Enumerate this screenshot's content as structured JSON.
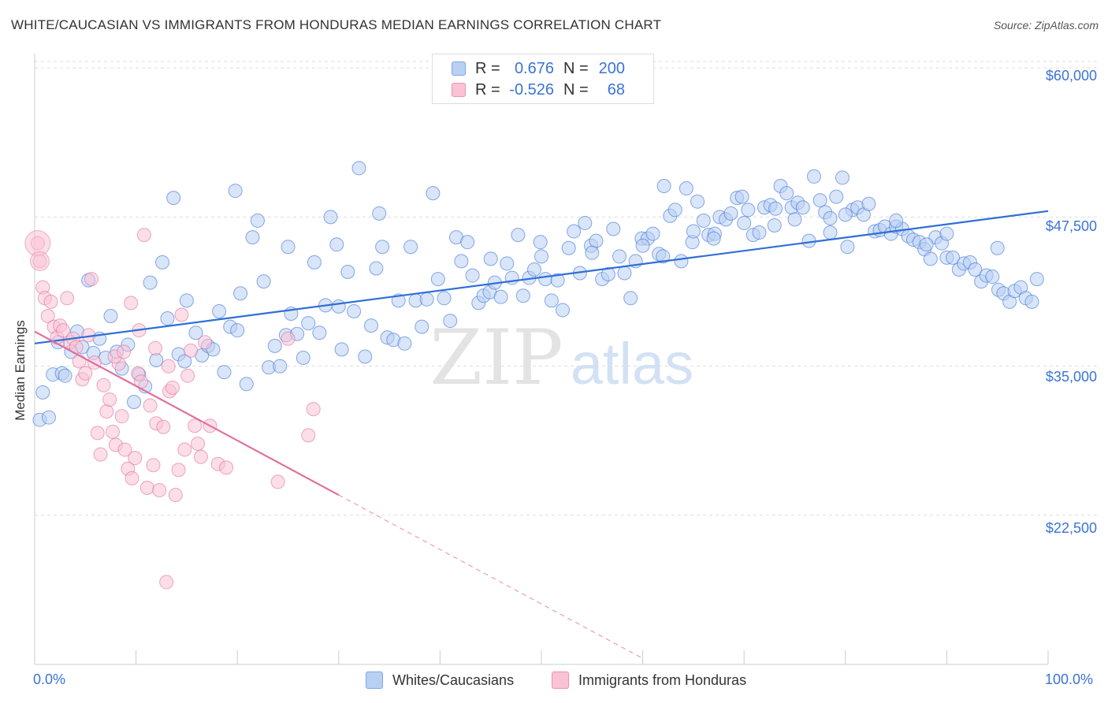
{
  "title": "WHITE/CAUCASIAN VS IMMIGRANTS FROM HONDURAS MEDIAN EARNINGS CORRELATION CHART",
  "source": "Source: ZipAtlas.com",
  "watermark": {
    "zip": "ZIP",
    "atlas": "atlas"
  },
  "legend": {
    "rows": [
      {
        "r_label": "R =",
        "r_value": "0.676",
        "n_label": "N =",
        "n_value": "200",
        "color": "#7aa7e8",
        "fill": "#b9d0f3"
      },
      {
        "r_label": "R =",
        "r_value": "-0.526",
        "n_label": "N =",
        "n_value": "68",
        "color": "#ee90b0",
        "fill": "#f9c3d5"
      }
    ]
  },
  "bottom_legend": {
    "series1": "Whites/Caucasians",
    "series2": "Immigrants from Honduras"
  },
  "chart_data": {
    "type": "scatter",
    "title": "WHITE/CAUCASIAN VS IMMIGRANTS FROM HONDURAS MEDIAN EARNINGS CORRELATION CHART",
    "xlabel": "",
    "ylabel": "Median Earnings",
    "x_tick_labels": [
      "0.0%",
      "100.0%"
    ],
    "y_tick_labels": [
      "$22,500",
      "$35,000",
      "$47,500",
      "$60,000"
    ],
    "y_tick_values": [
      22500,
      35000,
      47500,
      60000
    ],
    "xlim": [
      0,
      100
    ],
    "ylim": [
      10000,
      61200
    ],
    "grid": true,
    "legend_placement": "top-center",
    "series": [
      {
        "name": "Whites/Caucasians",
        "color": "#3a73d8",
        "fill": "#b9d0f3",
        "trend": {
          "x": [
            0,
            100
          ],
          "y": [
            36900,
            48000
          ]
        },
        "points": [
          [
            0.5,
            30500
          ],
          [
            0.8,
            32800
          ],
          [
            1.4,
            30700
          ],
          [
            1.8,
            34300
          ],
          [
            2.3,
            37000
          ],
          [
            2.7,
            34400
          ],
          [
            3.0,
            34200
          ],
          [
            3.6,
            36200
          ],
          [
            4.2,
            37900
          ],
          [
            4.7,
            36600
          ],
          [
            5.3,
            42200
          ],
          [
            5.8,
            36100
          ],
          [
            6.4,
            37300
          ],
          [
            7.0,
            35700
          ],
          [
            7.5,
            39200
          ],
          [
            8.1,
            36200
          ],
          [
            8.6,
            34800
          ],
          [
            9.2,
            36800
          ],
          [
            9.8,
            32000
          ],
          [
            10.3,
            34300
          ],
          [
            10.9,
            33300
          ],
          [
            11.4,
            42000
          ],
          [
            12.0,
            35500
          ],
          [
            12.6,
            43700
          ],
          [
            13.1,
            39000
          ],
          [
            13.7,
            49100
          ],
          [
            14.2,
            36000
          ],
          [
            14.8,
            35400
          ],
          [
            15.9,
            37800
          ],
          [
            16.5,
            35900
          ],
          [
            17.1,
            36700
          ],
          [
            17.6,
            36400
          ],
          [
            18.2,
            39600
          ],
          [
            18.7,
            34500
          ],
          [
            19.3,
            38300
          ],
          [
            19.8,
            49700
          ],
          [
            20.3,
            41100
          ],
          [
            20.9,
            33500
          ],
          [
            21.5,
            45800
          ],
          [
            22.0,
            47200
          ],
          [
            22.6,
            42100
          ],
          [
            23.1,
            34900
          ],
          [
            23.7,
            36700
          ],
          [
            24.2,
            35000
          ],
          [
            24.8,
            37600
          ],
          [
            25.3,
            39400
          ],
          [
            25.9,
            37700
          ],
          [
            26.5,
            35700
          ],
          [
            27.0,
            38600
          ],
          [
            27.6,
            43700
          ],
          [
            28.1,
            37800
          ],
          [
            28.7,
            40100
          ],
          [
            29.2,
            47500
          ],
          [
            29.8,
            45200
          ],
          [
            30.3,
            36400
          ],
          [
            30.9,
            42900
          ],
          [
            31.5,
            39600
          ],
          [
            32.0,
            51600
          ],
          [
            32.6,
            35800
          ],
          [
            33.2,
            38400
          ],
          [
            33.7,
            43200
          ],
          [
            34.3,
            45000
          ],
          [
            34.8,
            37400
          ],
          [
            35.4,
            37200
          ],
          [
            35.9,
            40500
          ],
          [
            36.5,
            36900
          ],
          [
            37.1,
            45000
          ],
          [
            37.6,
            40500
          ],
          [
            38.2,
            38300
          ],
          [
            38.7,
            40600
          ],
          [
            39.3,
            49500
          ],
          [
            39.8,
            42300
          ],
          [
            40.4,
            40700
          ],
          [
            41.0,
            38800
          ],
          [
            41.6,
            45800
          ],
          [
            42.1,
            43800
          ],
          [
            42.7,
            45400
          ],
          [
            43.2,
            42600
          ],
          [
            43.8,
            40300
          ],
          [
            44.3,
            40900
          ],
          [
            44.9,
            41200
          ],
          [
            45.4,
            42000
          ],
          [
            46.0,
            40800
          ],
          [
            46.6,
            43600
          ],
          [
            47.1,
            42400
          ],
          [
            47.7,
            46000
          ],
          [
            48.2,
            40900
          ],
          [
            48.8,
            42400
          ],
          [
            49.3,
            43100
          ],
          [
            49.9,
            45400
          ],
          [
            50.4,
            42300
          ],
          [
            51.0,
            40500
          ],
          [
            51.6,
            42200
          ],
          [
            52.1,
            39700
          ],
          [
            52.7,
            44900
          ],
          [
            53.2,
            46300
          ],
          [
            53.8,
            42800
          ],
          [
            54.3,
            47000
          ],
          [
            54.9,
            45100
          ],
          [
            55.4,
            45500
          ],
          [
            56.0,
            42300
          ],
          [
            56.6,
            42700
          ],
          [
            57.1,
            46500
          ],
          [
            57.7,
            44200
          ],
          [
            58.2,
            42800
          ],
          [
            58.8,
            40700
          ],
          [
            59.3,
            43800
          ],
          [
            59.9,
            45700
          ],
          [
            60.5,
            45700
          ],
          [
            61.0,
            46100
          ],
          [
            61.6,
            44400
          ],
          [
            62.1,
            50100
          ],
          [
            62.7,
            47600
          ],
          [
            63.2,
            48100
          ],
          [
            63.8,
            43800
          ],
          [
            64.3,
            49900
          ],
          [
            64.9,
            45400
          ],
          [
            65.4,
            48800
          ],
          [
            66.0,
            47200
          ],
          [
            66.5,
            46000
          ],
          [
            67.1,
            46100
          ],
          [
            67.6,
            47500
          ],
          [
            68.2,
            47300
          ],
          [
            68.7,
            47800
          ],
          [
            69.3,
            49100
          ],
          [
            69.8,
            49200
          ],
          [
            70.4,
            48100
          ],
          [
            70.9,
            46000
          ],
          [
            71.5,
            46200
          ],
          [
            72.0,
            48300
          ],
          [
            72.6,
            48500
          ],
          [
            73.1,
            48200
          ],
          [
            73.6,
            50100
          ],
          [
            74.2,
            49500
          ],
          [
            74.7,
            48300
          ],
          [
            75.3,
            48700
          ],
          [
            75.8,
            48300
          ],
          [
            76.4,
            45500
          ],
          [
            76.9,
            50900
          ],
          [
            77.5,
            48900
          ],
          [
            78.0,
            47900
          ],
          [
            78.5,
            47400
          ],
          [
            79.1,
            49200
          ],
          [
            79.7,
            50800
          ],
          [
            80.2,
            45000
          ],
          [
            80.7,
            48100
          ],
          [
            81.2,
            48300
          ],
          [
            81.8,
            47700
          ],
          [
            82.3,
            48600
          ],
          [
            82.9,
            46300
          ],
          [
            83.4,
            46400
          ],
          [
            83.9,
            46700
          ],
          [
            84.5,
            46100
          ],
          [
            85.0,
            46700
          ],
          [
            85.6,
            46500
          ],
          [
            86.2,
            45900
          ],
          [
            86.7,
            45600
          ],
          [
            87.3,
            45400
          ],
          [
            87.8,
            44800
          ],
          [
            88.4,
            44000
          ],
          [
            88.9,
            45800
          ],
          [
            89.5,
            45300
          ],
          [
            90.0,
            44100
          ],
          [
            90.6,
            44100
          ],
          [
            91.2,
            43100
          ],
          [
            91.7,
            43600
          ],
          [
            92.3,
            43700
          ],
          [
            92.8,
            43100
          ],
          [
            93.4,
            42100
          ],
          [
            93.9,
            42600
          ],
          [
            94.5,
            42500
          ],
          [
            95.1,
            41400
          ],
          [
            95.6,
            41100
          ],
          [
            96.2,
            40400
          ],
          [
            96.7,
            41300
          ],
          [
            97.3,
            41600
          ],
          [
            97.8,
            40700
          ],
          [
            98.4,
            40400
          ],
          [
            98.9,
            42300
          ],
          [
            15.0,
            40500
          ],
          [
            20.0,
            38000
          ],
          [
            25.0,
            45000
          ],
          [
            30.0,
            40000
          ],
          [
            34.0,
            47800
          ],
          [
            45.0,
            44000
          ],
          [
            50.0,
            44200
          ],
          [
            55.0,
            44500
          ],
          [
            60.0,
            45100
          ],
          [
            65.0,
            46300
          ],
          [
            70.0,
            47000
          ],
          [
            75.0,
            47300
          ],
          [
            80.0,
            47700
          ],
          [
            85.0,
            47200
          ],
          [
            90.0,
            46100
          ],
          [
            95.0,
            44900
          ],
          [
            62.0,
            44200
          ],
          [
            67.0,
            45700
          ],
          [
            73.0,
            46800
          ],
          [
            78.5,
            46200
          ],
          [
            88.0,
            45200
          ]
        ]
      },
      {
        "name": "Immigrants from Honduras",
        "color": "#e0709a",
        "fill": "#f9c3d5",
        "trend": {
          "x": [
            0,
            30
          ],
          "y": [
            37900,
            24200
          ]
        },
        "trend_dashed": {
          "x": [
            30,
            60
          ],
          "y": [
            24200,
            10500
          ]
        },
        "points": [
          [
            0.3,
            45300
          ],
          [
            0.5,
            43800
          ],
          [
            0.8,
            41600
          ],
          [
            1.0,
            40700
          ],
          [
            1.3,
            39200
          ],
          [
            1.6,
            40400
          ],
          [
            1.9,
            38300
          ],
          [
            2.2,
            37400
          ],
          [
            2.5,
            38400
          ],
          [
            2.8,
            38000
          ],
          [
            3.2,
            40700
          ],
          [
            3.5,
            37000
          ],
          [
            3.8,
            37300
          ],
          [
            4.1,
            36600
          ],
          [
            4.4,
            35400
          ],
          [
            4.7,
            33900
          ],
          [
            5.0,
            34400
          ],
          [
            5.3,
            37600
          ],
          [
            5.6,
            42300
          ],
          [
            5.9,
            35300
          ],
          [
            6.2,
            29400
          ],
          [
            6.5,
            27600
          ],
          [
            6.8,
            33400
          ],
          [
            7.1,
            31200
          ],
          [
            7.4,
            32200
          ],
          [
            7.7,
            29500
          ],
          [
            8.0,
            28400
          ],
          [
            8.3,
            35200
          ],
          [
            8.6,
            30800
          ],
          [
            8.9,
            28000
          ],
          [
            9.2,
            26400
          ],
          [
            9.6,
            25600
          ],
          [
            9.9,
            27300
          ],
          [
            10.2,
            34400
          ],
          [
            10.5,
            33700
          ],
          [
            10.8,
            46000
          ],
          [
            11.1,
            24800
          ],
          [
            11.4,
            31700
          ],
          [
            11.7,
            26700
          ],
          [
            12.0,
            30200
          ],
          [
            12.3,
            24600
          ],
          [
            12.7,
            29900
          ],
          [
            13.0,
            16900
          ],
          [
            13.3,
            32900
          ],
          [
            13.6,
            33200
          ],
          [
            13.9,
            24200
          ],
          [
            14.2,
            26300
          ],
          [
            14.5,
            39300
          ],
          [
            14.8,
            28000
          ],
          [
            15.1,
            34200
          ],
          [
            15.4,
            36300
          ],
          [
            15.8,
            30000
          ],
          [
            16.1,
            28500
          ],
          [
            16.4,
            27400
          ],
          [
            16.8,
            37000
          ],
          [
            17.3,
            30000
          ],
          [
            18.1,
            26800
          ],
          [
            18.9,
            26500
          ],
          [
            24.0,
            25300
          ],
          [
            25.0,
            37300
          ],
          [
            27.0,
            29200
          ],
          [
            27.5,
            31400
          ],
          [
            9.5,
            40300
          ],
          [
            10.3,
            38000
          ],
          [
            11.9,
            36500
          ],
          [
            13.2,
            35000
          ],
          [
            7.9,
            35800
          ],
          [
            8.8,
            36200
          ]
        ]
      }
    ]
  }
}
